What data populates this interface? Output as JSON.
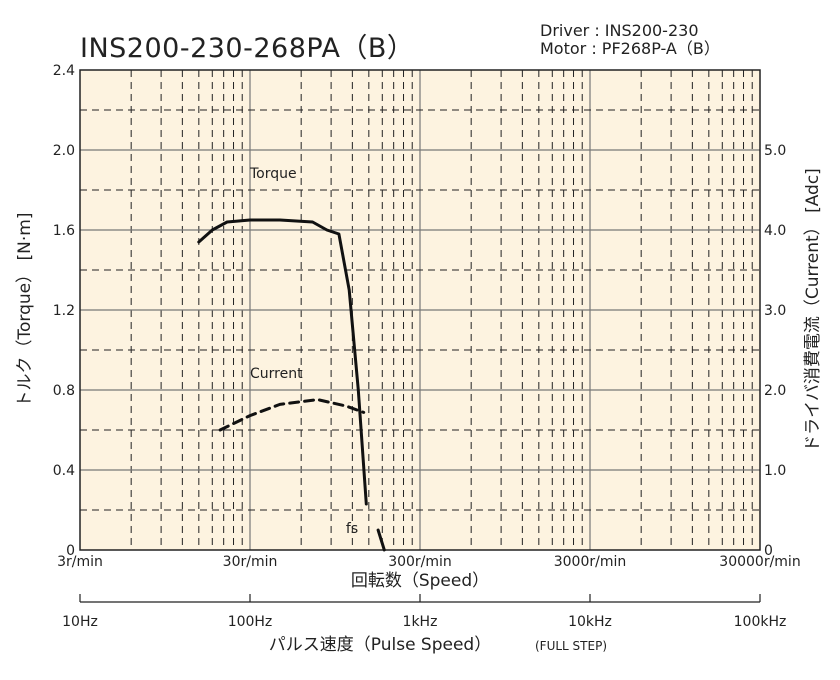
{
  "header": {
    "title": "INS200-230-268PA（B）",
    "driver": "Driver : INS200-230",
    "motor": "Motor : PF268P-A（B）"
  },
  "chart_data": {
    "type": "line",
    "title": "INS200-230-268PA（B）",
    "xlabel": "回転数（Speed）",
    "x_scale": "log",
    "xlim_rpm": [
      3,
      30000
    ],
    "x_ticks": [
      {
        "value": 3,
        "label": "3r/min"
      },
      {
        "value": 30,
        "label": "30r/min"
      },
      {
        "value": 300,
        "label": "300r/min"
      },
      {
        "value": 3000,
        "label": "3000r/min"
      },
      {
        "value": 30000,
        "label": "30000r/min"
      }
    ],
    "x2label": "パルス速度（Pulse Speed）",
    "x2label_suffix": "(FULL STEP)",
    "x2_ticks": [
      {
        "value_rpm": 3,
        "label": "10Hz"
      },
      {
        "value_rpm": 30,
        "label": "100Hz"
      },
      {
        "value_rpm": 300,
        "label": "1kHz"
      },
      {
        "value_rpm": 3000,
        "label": "10kHz"
      },
      {
        "value_rpm": 30000,
        "label": "100kHz"
      }
    ],
    "ylabel": "トルク（Torque） [N·m]",
    "ylim": [
      0,
      2.4
    ],
    "y_ticks": [
      "0",
      "0.4",
      "0.8",
      "1.2",
      "1.6",
      "2.0",
      "2.4"
    ],
    "y2label": "ドライバ消費電流（Current） [Adc]",
    "y2lim": [
      0,
      6.0
    ],
    "y2_ticks": [
      "0",
      "1.0",
      "2.0",
      "3.0",
      "4.0",
      "5.0"
    ],
    "grid": true,
    "background": "#fdf3e0",
    "series": [
      {
        "name": "Torque",
        "axis": "left",
        "style": "solid",
        "color": "#111111",
        "points": [
          [
            15,
            1.54
          ],
          [
            18,
            1.6
          ],
          [
            22,
            1.64
          ],
          [
            30,
            1.65
          ],
          [
            45,
            1.65
          ],
          [
            70,
            1.64
          ],
          [
            85,
            1.6
          ],
          [
            100,
            1.58
          ],
          [
            115,
            1.3
          ],
          [
            130,
            0.8
          ],
          [
            145,
            0.23
          ]
        ]
      },
      {
        "name": "Current",
        "axis": "right",
        "style": "dashed",
        "color": "#111111",
        "points": [
          [
            20,
            1.5
          ],
          [
            30,
            1.68
          ],
          [
            45,
            1.82
          ],
          [
            75,
            1.88
          ],
          [
            110,
            1.8
          ],
          [
            140,
            1.72
          ]
        ]
      }
    ],
    "annotations": [
      {
        "text": "Torque",
        "x": 30,
        "y": 1.86
      },
      {
        "text": "Current",
        "x": 30,
        "y": 0.86
      },
      {
        "text": "fs",
        "x": 110,
        "y": 0.085
      }
    ],
    "fs_curve": [
      [
        170,
        0.1
      ],
      [
        185,
        0.0
      ]
    ]
  }
}
